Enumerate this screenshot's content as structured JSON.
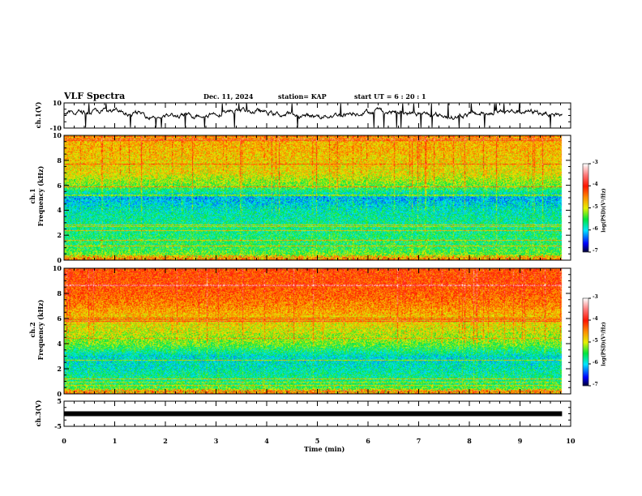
{
  "header": {
    "title": "VLF Spectra",
    "date": "Dec. 11, 2024",
    "station": "station= KAP",
    "start_ut": "start  UT  =   6  : 20 : 1"
  },
  "chart_data": [
    {
      "type": "line",
      "name": "ch1-waveform",
      "ylabel": "ch.1(V)",
      "ylim": [
        -10,
        10
      ],
      "yticks": [
        "10",
        "-10"
      ],
      "xlim": [
        0,
        10
      ],
      "data_end_min": 9.83,
      "mean_level": 1.5,
      "noise_amplitude": 2.5
    },
    {
      "type": "heatmap",
      "name": "ch1-spectrogram",
      "ylabel": "ch.1\nFrequency (kHz)",
      "ylim": [
        0,
        10
      ],
      "yticks": [
        "0",
        "2",
        "4",
        "6",
        "8",
        "10"
      ],
      "xlim": [
        0,
        10
      ],
      "freq_profile_khz": [
        0,
        0.5,
        1,
        2,
        3,
        4,
        5,
        6,
        7,
        8,
        9,
        10
      ],
      "logpsd_profile": [
        -4.6,
        -5.3,
        -5.5,
        -5.6,
        -5.7,
        -5.8,
        -6.1,
        -5.3,
        -4.9,
        -4.8,
        -4.7,
        -4.7
      ],
      "colorbar": {
        "label": "log(PSD)(V²/Hz)",
        "range": [
          -7,
          -3
        ],
        "ticks": [
          "-3",
          "-4",
          "-5",
          "-6",
          "-7"
        ]
      }
    },
    {
      "type": "heatmap",
      "name": "ch2-spectrogram",
      "ylabel": "ch.2\nFrequency (kHz)",
      "ylim": [
        0,
        10
      ],
      "yticks": [
        "0",
        "2",
        "4",
        "6",
        "8",
        "10"
      ],
      "xlim": [
        0,
        10
      ],
      "freq_profile_khz": [
        0,
        0.5,
        1,
        2,
        3,
        4,
        5,
        6,
        7,
        8,
        9,
        10
      ],
      "logpsd_profile": [
        -4.6,
        -5.4,
        -5.6,
        -5.8,
        -5.9,
        -5.3,
        -5.0,
        -4.8,
        -4.5,
        -4.3,
        -4.2,
        -4.2
      ],
      "colorbar": {
        "label": "log(PSD)(V²/Hz)",
        "range": [
          -7,
          -3
        ],
        "ticks": [
          "-3",
          "-4",
          "-5",
          "-6",
          "-7"
        ]
      }
    },
    {
      "type": "line",
      "name": "ch3-waveform",
      "ylabel": "ch.3(V)",
      "ylim": [
        -5,
        5
      ],
      "yticks": [
        "5",
        "-5"
      ],
      "xlim": [
        0,
        10
      ],
      "data_end_min": 9.83,
      "constant_value": 0
    }
  ],
  "xaxis": {
    "label": "Time  (min)",
    "ticks": [
      "0",
      "1",
      "2",
      "3",
      "4",
      "5",
      "6",
      "7",
      "8",
      "9",
      "10"
    ]
  }
}
